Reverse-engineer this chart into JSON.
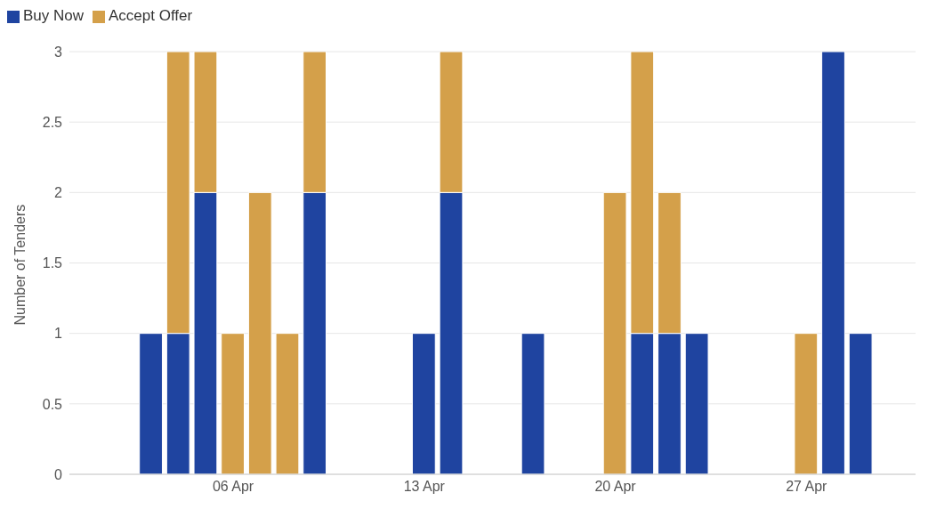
{
  "chart_data": {
    "type": "bar",
    "stacked": true,
    "ylabel": "Number of Tenders",
    "x": [
      "--04-03",
      "--04-04",
      "--04-05",
      "--04-06",
      "--04-07",
      "--04-08",
      "--04-09",
      "--04-13",
      "--04-14",
      "--04-17",
      "--04-20",
      "--04-21",
      "--04-22",
      "--04-23",
      "--04-27",
      "--04-28",
      "--04-29"
    ],
    "series": [
      {
        "name": "Buy Now",
        "color": "#1f44a0",
        "values": [
          1,
          1,
          2,
          null,
          null,
          null,
          2,
          1,
          2,
          1,
          null,
          1,
          1,
          1,
          null,
          3,
          1
        ]
      },
      {
        "name": "Accept Offer",
        "color": "#d4a04a",
        "values": [
          null,
          2,
          1,
          1,
          2,
          1,
          1,
          null,
          1,
          null,
          2,
          2,
          1,
          null,
          1,
          null,
          null
        ]
      }
    ],
    "xlim": [
      "--03-31",
      "--05-01"
    ],
    "xticks": [
      {
        "value": "--04-06",
        "label": "06 Apr"
      },
      {
        "value": "--04-13",
        "label": "13 Apr"
      },
      {
        "value": "--04-20",
        "label": "20 Apr"
      },
      {
        "value": "--04-27",
        "label": "27 Apr"
      }
    ],
    "ylim": [
      0,
      3
    ],
    "yticks": [
      0,
      0.5,
      1,
      1.5,
      2,
      2.5,
      3
    ],
    "grid": "y",
    "legend": "top left"
  }
}
